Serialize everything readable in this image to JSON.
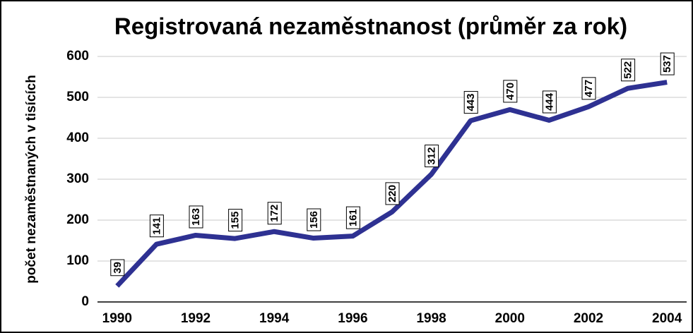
{
  "chart_data": {
    "type": "line",
    "title": "Registrovaná nezaměstnanost (průměr za rok)",
    "y_label": "počet nezaměstnaných v tisících",
    "categories": [
      "1990",
      null,
      "1992",
      null,
      "1994",
      null,
      "1996",
      null,
      "1998",
      null,
      "2000",
      null,
      "2002",
      null,
      "2004"
    ],
    "series": [
      {
        "name": "Registrovaná nezaměstnanost",
        "color": "#2e3192",
        "values": [
          39,
          141,
          163,
          155,
          172,
          156,
          161,
          220,
          312,
          443,
          470,
          444,
          477,
          522,
          537
        ]
      }
    ],
    "ylim": [
      0,
      600
    ],
    "yticks": [
      0,
      100,
      200,
      300,
      400,
      500,
      600
    ],
    "grid": true
  }
}
